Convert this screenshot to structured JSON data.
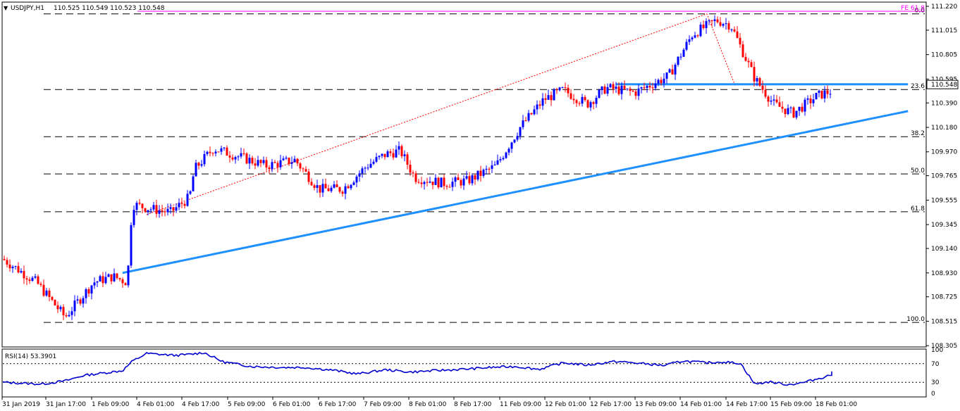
{
  "header": {
    "symbol": "USDJPY,H1",
    "ohlc": "110.525 110.549 110.523 110.548"
  },
  "chart_data": [
    {
      "type": "candlestick",
      "title": "USDJPY,H1",
      "ylim": [
        108.3,
        111.25
      ],
      "y_ticks": [
        "111.220",
        "111.015",
        "110.805",
        "110.595",
        "110.390",
        "110.180",
        "109.970",
        "109.765",
        "109.555",
        "109.345",
        "109.140",
        "108.930",
        "108.725",
        "108.515",
        "108.305"
      ],
      "current_price": "110.548",
      "x_labels": [
        "31 Jan 2019",
        "31 Jan 17:00",
        "1 Feb 09:00",
        "4 Feb 01:00",
        "4 Feb 17:00",
        "5 Feb 09:00",
        "6 Feb 01:00",
        "6 Feb 17:00",
        "7 Feb 09:00",
        "8 Feb 01:00",
        "8 Feb 17:00",
        "11 Feb 09:00",
        "12 Feb 01:00",
        "12 Feb 17:00",
        "13 Feb 09:00",
        "14 Feb 01:00",
        "14 Feb 17:00",
        "15 Feb 09:00",
        "18 Feb 01:00"
      ],
      "fib_levels": [
        {
          "label": "0.0",
          "price": 111.155
        },
        {
          "label": "23.6",
          "price": 110.505
        },
        {
          "label": "38.2",
          "price": 110.1
        },
        {
          "label": "50.0",
          "price": 109.78
        },
        {
          "label": "61.8",
          "price": 109.455
        },
        {
          "label": "100.0",
          "price": 108.505
        }
      ],
      "fe_label": "FE 61.8",
      "fe_price": 111.42,
      "resistance_line": {
        "x1": 12.8,
        "x2": 18.9,
        "price": 110.55
      },
      "support_trendline": {
        "p1": [
          2.5,
          108.93
        ],
        "p2": [
          18.9,
          110.32
        ]
      },
      "projection_line": [
        [
          3.0,
          109.43
        ],
        [
          14.7,
          111.155
        ],
        [
          15.3,
          110.53
        ]
      ],
      "path_x": [
        0,
        0.7,
        1.3,
        1.9,
        2.3,
        2.6,
        2.7,
        3.1,
        3.5,
        3.9,
        4.0,
        4.4,
        5.0,
        5.5,
        6.1,
        6.6,
        7.1,
        7.6,
        8.0,
        8.3,
        8.6,
        9.2,
        9.7,
        10.3,
        10.8,
        11.3,
        11.7,
        12.2,
        12.6,
        13.2,
        13.9,
        14.4,
        14.9,
        15.2,
        15.7,
        16.1,
        16.5,
        17.0,
        17.5,
        18.0,
        18.6,
        19.2
      ],
      "path_y": [
        109.05,
        108.85,
        108.55,
        108.85,
        108.9,
        108.85,
        109.52,
        109.48,
        109.45,
        109.58,
        109.82,
        110.0,
        109.92,
        109.85,
        109.9,
        109.65,
        109.65,
        109.85,
        109.95,
        109.98,
        109.75,
        109.7,
        109.72,
        109.85,
        110.18,
        110.42,
        110.5,
        110.38,
        110.52,
        110.48,
        110.62,
        110.98,
        111.1,
        111.06,
        110.6,
        110.38,
        110.3,
        110.45,
        110.52,
        110.55,
        110.5,
        110.548
      ]
    },
    {
      "type": "line",
      "title": "RSI(14) 53.3901",
      "ylim": [
        0,
        100
      ],
      "y_ticks": [
        "100",
        "70",
        "30",
        "0"
      ],
      "levels": [
        70,
        30
      ],
      "path_x": [
        0,
        0.8,
        1.3,
        1.7,
        2.1,
        2.5,
        2.7,
        3.0,
        3.6,
        3.9,
        4.2,
        4.6,
        5.2,
        5.8,
        6.3,
        6.9,
        7.4,
        8.0,
        8.5,
        9.0,
        9.6,
        10.2,
        10.7,
        11.2,
        11.7,
        12.2,
        12.8,
        13.4,
        13.8,
        14.2,
        14.7,
        15.0,
        15.4,
        15.7,
        16.0,
        16.4,
        16.7,
        17.1,
        17.5,
        18.0,
        18.6
      ],
      "path_y": [
        30,
        26,
        33,
        45,
        50,
        55,
        75,
        92,
        88,
        90,
        94,
        74,
        64,
        62,
        62,
        56,
        48,
        57,
        52,
        55,
        58,
        62,
        64,
        58,
        72,
        67,
        75,
        70,
        66,
        76,
        72,
        74,
        71,
        26,
        31,
        25,
        29,
        40,
        52,
        48,
        53.39
      ]
    }
  ]
}
